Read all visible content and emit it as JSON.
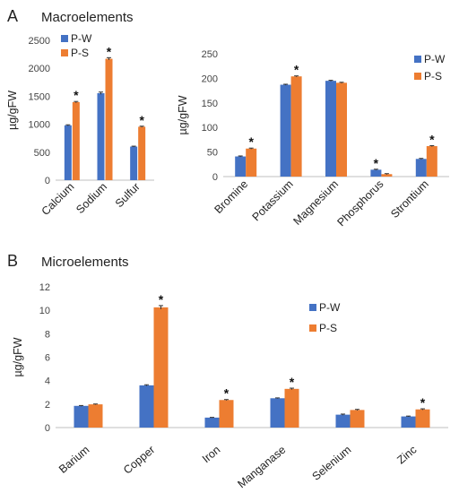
{
  "colors": {
    "P-W": "#4472C4",
    "P-S": "#ED7D31",
    "axis": "#BFBFBF",
    "error": "#333333"
  },
  "panels": [
    {
      "letter": "A",
      "title": "Macroelements"
    },
    {
      "letter": "B",
      "title": "Microelements"
    }
  ],
  "chart_data": [
    {
      "type": "bar",
      "title": "",
      "xlabel": "",
      "ylabel": "µg/gFW",
      "ylim": [
        0,
        2500
      ],
      "yticks": [
        0,
        500,
        1000,
        1500,
        2000,
        2500
      ],
      "categories": [
        "Calcium",
        "Sodium",
        "Sulfur"
      ],
      "series": [
        {
          "name": "P-W",
          "values": [
            980,
            1555,
            600
          ],
          "errors": [
            10,
            20,
            8
          ]
        },
        {
          "name": "P-S",
          "values": [
            1395,
            2170,
            955
          ],
          "errors": [
            12,
            20,
            10
          ]
        }
      ],
      "significant": [
        true,
        true,
        true
      ],
      "legend": "top-left"
    },
    {
      "type": "bar",
      "title": "",
      "xlabel": "",
      "ylabel": "µg/gFW",
      "ylim": [
        0,
        250
      ],
      "yticks": [
        0,
        50,
        100,
        150,
        200,
        250
      ],
      "categories": [
        "Bromine",
        "Potassium",
        "Magnesium",
        "Phosphorus",
        "Strontium"
      ],
      "series": [
        {
          "name": "P-W",
          "values": [
            41,
            187,
            195,
            14,
            36
          ],
          "errors": [
            1,
            1,
            1,
            1,
            1
          ]
        },
        {
          "name": "P-S",
          "values": [
            57,
            204,
            191,
            5,
            62
          ],
          "errors": [
            1,
            1,
            1,
            1,
            1
          ]
        }
      ],
      "significant": [
        true,
        true,
        false,
        true,
        true
      ],
      "legend": "top-right"
    },
    {
      "type": "bar",
      "title": "",
      "xlabel": "",
      "ylabel": "µg/gFW",
      "ylim": [
        0,
        12
      ],
      "yticks": [
        0,
        2,
        4,
        6,
        8,
        10,
        12
      ],
      "categories": [
        "Barium",
        "Copper",
        "Iron",
        "Manganase",
        "Selenium",
        "Zinc"
      ],
      "series": [
        {
          "name": "P-W",
          "values": [
            1.85,
            3.6,
            0.85,
            2.5,
            1.1,
            0.95
          ],
          "errors": [
            0.03,
            0.05,
            0.02,
            0.03,
            0.05,
            0.03
          ]
        },
        {
          "name": "P-S",
          "values": [
            1.98,
            10.25,
            2.35,
            3.3,
            1.5,
            1.55
          ],
          "errors": [
            0.03,
            0.15,
            0.04,
            0.06,
            0.05,
            0.05
          ]
        }
      ],
      "significant": [
        false,
        true,
        true,
        true,
        false,
        true
      ],
      "legend": "right"
    }
  ]
}
